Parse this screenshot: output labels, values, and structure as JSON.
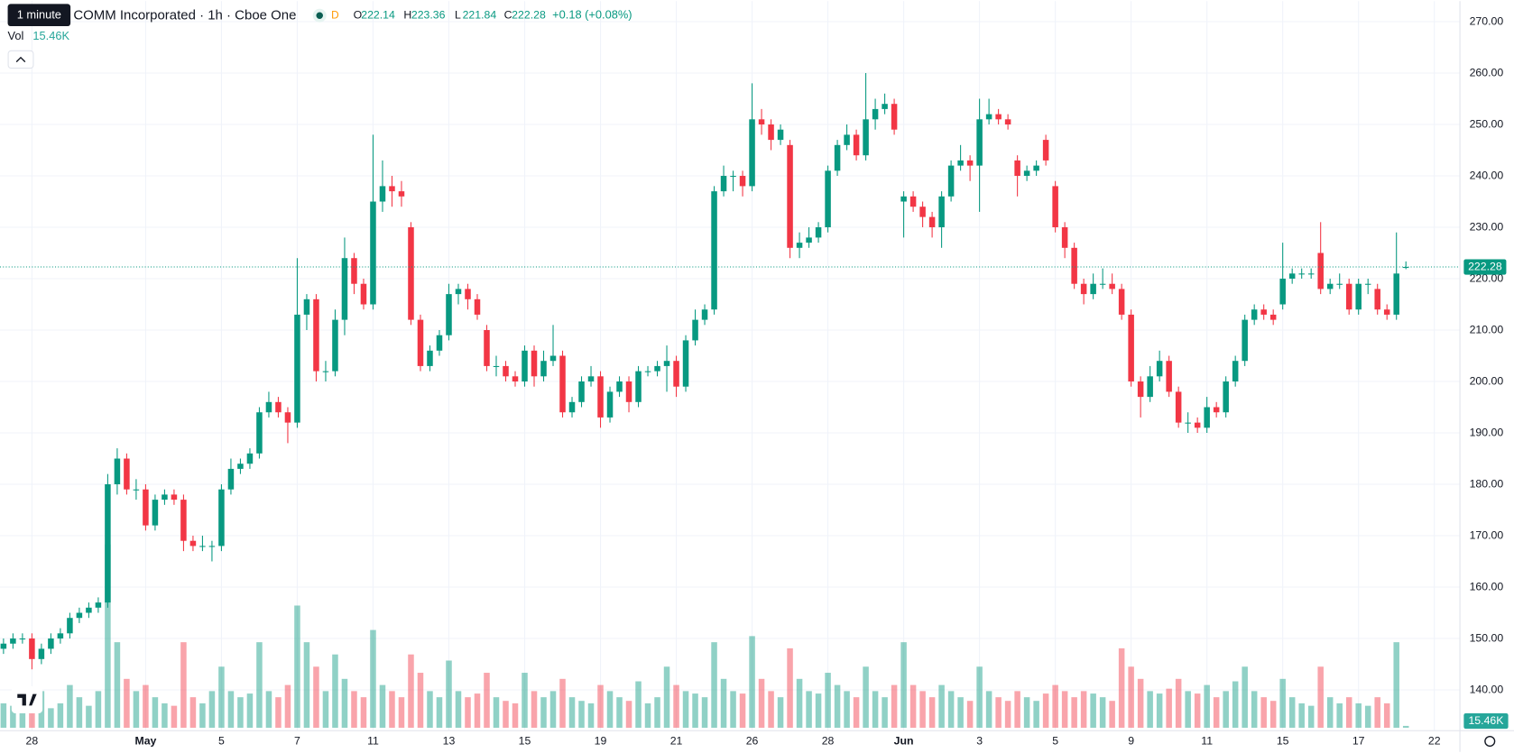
{
  "header": {
    "tooltip": "1 minute",
    "title": "COMM Incorporated · 1h · Cboe One",
    "badge": "D",
    "ohlc_labels": [
      "O",
      "H",
      "L",
      "C"
    ],
    "change": "+0.18 (+0.08%)",
    "volume_label": "Vol",
    "volume": "15.46K"
  },
  "chart_data": {
    "type": "candlestick",
    "up_color": "#089981",
    "down_color": "#f23645",
    "grid": true,
    "ylim": [
      130,
      274
    ],
    "yticks": [
      {
        "value": 140,
        "label": "140.00"
      },
      {
        "value": 150,
        "label": "150.00"
      },
      {
        "value": 160,
        "label": "160.00"
      },
      {
        "value": 170,
        "label": "170.00"
      },
      {
        "value": 180,
        "label": "180.00"
      },
      {
        "value": 190,
        "label": "190.00"
      },
      {
        "value": 200,
        "label": "200.00"
      },
      {
        "value": 210,
        "label": "210.00"
      },
      {
        "value": 220,
        "label": "220.00"
      },
      {
        "value": 230,
        "label": "230.00"
      },
      {
        "value": 240,
        "label": "240.00"
      },
      {
        "value": 250,
        "label": "250.00"
      },
      {
        "value": 260,
        "label": "260.00"
      },
      {
        "value": 270,
        "label": "270.00"
      }
    ],
    "xlim": [
      -0.37,
      153.7
    ],
    "xticks": [
      {
        "value": 3,
        "label": "28"
      },
      {
        "value": 15,
        "label": "May"
      },
      {
        "value": 23,
        "label": "5"
      },
      {
        "value": 31,
        "label": "7"
      },
      {
        "value": 39,
        "label": "11"
      },
      {
        "value": 47,
        "label": "13"
      },
      {
        "value": 55,
        "label": "15"
      },
      {
        "value": 63,
        "label": "19"
      },
      {
        "value": 71,
        "label": "21"
      },
      {
        "value": 79,
        "label": "26"
      },
      {
        "value": 87,
        "label": "28"
      },
      {
        "value": 95,
        "label": "Jun"
      },
      {
        "value": 103,
        "label": "3"
      },
      {
        "value": 111,
        "label": "5"
      },
      {
        "value": 119,
        "label": "9"
      },
      {
        "value": 127,
        "label": "11"
      },
      {
        "value": 135,
        "label": "15"
      },
      {
        "value": 143,
        "label": "17"
      },
      {
        "value": 151,
        "label": "22"
      }
    ],
    "candles": [
      [
        148,
        150,
        147,
        149
      ],
      [
        149,
        151,
        148,
        150
      ],
      [
        150,
        151,
        149,
        150
      ],
      [
        150,
        151,
        144,
        146
      ],
      [
        146,
        149,
        145,
        148
      ],
      [
        148,
        151,
        147,
        150
      ],
      [
        150,
        152,
        149,
        151
      ],
      [
        151,
        155,
        150,
        154
      ],
      [
        154,
        156,
        153,
        155
      ],
      [
        155,
        157,
        154,
        156
      ],
      [
        156,
        158,
        155,
        157
      ],
      [
        157,
        182,
        156,
        180
      ],
      [
        180,
        187,
        178,
        185
      ],
      [
        185,
        186,
        178,
        179
      ],
      [
        179,
        181,
        177,
        179
      ],
      [
        179,
        180,
        171,
        172
      ],
      [
        172,
        178,
        171,
        177
      ],
      [
        177,
        179,
        176,
        178
      ],
      [
        178,
        179,
        176,
        177
      ],
      [
        177,
        178,
        167,
        169
      ],
      [
        169,
        170,
        167,
        168
      ],
      [
        168,
        170,
        167,
        168
      ],
      [
        168,
        169,
        165,
        168
      ],
      [
        168,
        180,
        167,
        179
      ],
      [
        179,
        185,
        178,
        183
      ],
      [
        183,
        185,
        182,
        184
      ],
      [
        184,
        187,
        183,
        186
      ],
      [
        186,
        195,
        185,
        194
      ],
      [
        194,
        198,
        193,
        196
      ],
      [
        196,
        197,
        193,
        194
      ],
      [
        194,
        195,
        188,
        192
      ],
      [
        192,
        224,
        191,
        213
      ],
      [
        213,
        217,
        210,
        216
      ],
      [
        216,
        217,
        200,
        202
      ],
      [
        202,
        204,
        200,
        202
      ],
      [
        202,
        214,
        201,
        212
      ],
      [
        212,
        228,
        209,
        224
      ],
      [
        224,
        225,
        217,
        219
      ],
      [
        219,
        220,
        214,
        215
      ],
      [
        215,
        248,
        214,
        235
      ],
      [
        235,
        243,
        233,
        238
      ],
      [
        238,
        240,
        234,
        237
      ],
      [
        237,
        239,
        234,
        236
      ],
      [
        230,
        231,
        211,
        212
      ],
      [
        212,
        213,
        202,
        203
      ],
      [
        203,
        207,
        202,
        206
      ],
      [
        206,
        210,
        205,
        209
      ],
      [
        209,
        219,
        208,
        217
      ],
      [
        217,
        219,
        215,
        218
      ],
      [
        218,
        219,
        214,
        216
      ],
      [
        216,
        217,
        212,
        213
      ],
      [
        210,
        211,
        202,
        203
      ],
      [
        203,
        205,
        201,
        203
      ],
      [
        203,
        204,
        200,
        201
      ],
      [
        201,
        202,
        199,
        200
      ],
      [
        200,
        207,
        199,
        206
      ],
      [
        206,
        207,
        199,
        201
      ],
      [
        201,
        206,
        200,
        204
      ],
      [
        204,
        211,
        203,
        205
      ],
      [
        205,
        206,
        193,
        194
      ],
      [
        194,
        197,
        193,
        196
      ],
      [
        196,
        201,
        195,
        200
      ],
      [
        200,
        203,
        199,
        201
      ],
      [
        201,
        202,
        191,
        193
      ],
      [
        193,
        199,
        192,
        198
      ],
      [
        198,
        201,
        197,
        200
      ],
      [
        200,
        201,
        194,
        196
      ],
      [
        196,
        203,
        195,
        202
      ],
      [
        202,
        203,
        201,
        202
      ],
      [
        202,
        204,
        201,
        203
      ],
      [
        203,
        207,
        198,
        204
      ],
      [
        204,
        205,
        197,
        199
      ],
      [
        199,
        209,
        198,
        208
      ],
      [
        208,
        214,
        207,
        212
      ],
      [
        212,
        215,
        211,
        214
      ],
      [
        214,
        238,
        213,
        237
      ],
      [
        237,
        242,
        236,
        240
      ],
      [
        240,
        241,
        237,
        240
      ],
      [
        240,
        241,
        236,
        238
      ],
      [
        238,
        258,
        237,
        251
      ],
      [
        251,
        253,
        248,
        250
      ],
      [
        250,
        251,
        245,
        247
      ],
      [
        247,
        250,
        246,
        249
      ],
      [
        246,
        247,
        224,
        226
      ],
      [
        226,
        229,
        224,
        227
      ],
      [
        227,
        230,
        226,
        228
      ],
      [
        228,
        231,
        227,
        230
      ],
      [
        230,
        242,
        229,
        241
      ],
      [
        241,
        247,
        240,
        246
      ],
      [
        246,
        250,
        245,
        248
      ],
      [
        248,
        249,
        243,
        244
      ],
      [
        244,
        260,
        243,
        251
      ],
      [
        251,
        255,
        249,
        253
      ],
      [
        253,
        256,
        252,
        254
      ],
      [
        254,
        255,
        248,
        249
      ],
      [
        235,
        237,
        228,
        236
      ],
      [
        236,
        237,
        233,
        234
      ],
      [
        234,
        235,
        230,
        232
      ],
      [
        232,
        233,
        228,
        230
      ],
      [
        230,
        237,
        226,
        236
      ],
      [
        236,
        243,
        235,
        242
      ],
      [
        242,
        246,
        241,
        243
      ],
      [
        243,
        244,
        239,
        242
      ],
      [
        242,
        255,
        233,
        251
      ],
      [
        251,
        255,
        250,
        252
      ],
      [
        252,
        253,
        250,
        251
      ],
      [
        251,
        252,
        249,
        250
      ],
      [
        243,
        244,
        236,
        240
      ],
      [
        240,
        242,
        239,
        241
      ],
      [
        241,
        243,
        240,
        242
      ],
      [
        247,
        248,
        242,
        243
      ],
      [
        238,
        239,
        229,
        230
      ],
      [
        230,
        231,
        224,
        226
      ],
      [
        226,
        227,
        218,
        219
      ],
      [
        219,
        220,
        215,
        217
      ],
      [
        217,
        221,
        216,
        219
      ],
      [
        219,
        222,
        218,
        219
      ],
      [
        219,
        221,
        217,
        218
      ],
      [
        218,
        219,
        212,
        213
      ],
      [
        213,
        214,
        199,
        200
      ],
      [
        200,
        201,
        193,
        197
      ],
      [
        197,
        203,
        196,
        201
      ],
      [
        201,
        206,
        200,
        204
      ],
      [
        204,
        205,
        197,
        198
      ],
      [
        198,
        199,
        191,
        192
      ],
      [
        192,
        194,
        190,
        192
      ],
      [
        192,
        193,
        190,
        191
      ],
      [
        191,
        197,
        190,
        195
      ],
      [
        195,
        196,
        193,
        194
      ],
      [
        194,
        201,
        193,
        200
      ],
      [
        200,
        205,
        199,
        204
      ],
      [
        204,
        213,
        203,
        212
      ],
      [
        212,
        215,
        211,
        214
      ],
      [
        214,
        215,
        212,
        213
      ],
      [
        213,
        214,
        211,
        212
      ],
      [
        215,
        227,
        214,
        220
      ],
      [
        220,
        222,
        219,
        221
      ],
      [
        221,
        222,
        220,
        221
      ],
      [
        221,
        222,
        220,
        221
      ],
      [
        225,
        231,
        217,
        218
      ],
      [
        218,
        220,
        217,
        219
      ],
      [
        219,
        221,
        218,
        219
      ],
      [
        219,
        220,
        213,
        214
      ],
      [
        214,
        220,
        213,
        219
      ],
      [
        219,
        220,
        217,
        219
      ],
      [
        218,
        219,
        213,
        214
      ],
      [
        214,
        215,
        212,
        213
      ],
      [
        213,
        229,
        212,
        221
      ],
      [
        222.14,
        223.36,
        221.84,
        222.28
      ]
    ],
    "volumes": [
      200,
      180,
      150,
      250,
      300,
      160,
      200,
      350,
      250,
      180,
      300,
      1500,
      700,
      400,
      300,
      350,
      250,
      200,
      180,
      700,
      250,
      200,
      300,
      500,
      300,
      250,
      280,
      700,
      300,
      250,
      350,
      1000,
      700,
      500,
      300,
      600,
      400,
      300,
      250,
      800,
      350,
      300,
      250,
      600,
      450,
      300,
      250,
      550,
      300,
      250,
      280,
      450,
      250,
      220,
      200,
      450,
      300,
      250,
      300,
      400,
      250,
      220,
      200,
      350,
      300,
      250,
      220,
      380,
      200,
      250,
      500,
      350,
      300,
      280,
      250,
      700,
      400,
      300,
      280,
      750,
      400,
      300,
      250,
      650,
      400,
      300,
      280,
      450,
      350,
      300,
      250,
      500,
      300,
      250,
      350,
      700,
      350,
      300,
      250,
      350,
      300,
      250,
      220,
      500,
      300,
      250,
      220,
      300,
      250,
      220,
      280,
      350,
      300,
      250,
      300,
      280,
      250,
      220,
      650,
      500,
      400,
      300,
      280,
      320,
      400,
      300,
      280,
      350,
      250,
      300,
      380,
      500,
      300,
      250,
      220,
      400,
      250,
      200,
      180,
      500,
      250,
      200,
      250,
      200,
      180,
      250,
      200,
      700,
      15.46
    ]
  }
}
